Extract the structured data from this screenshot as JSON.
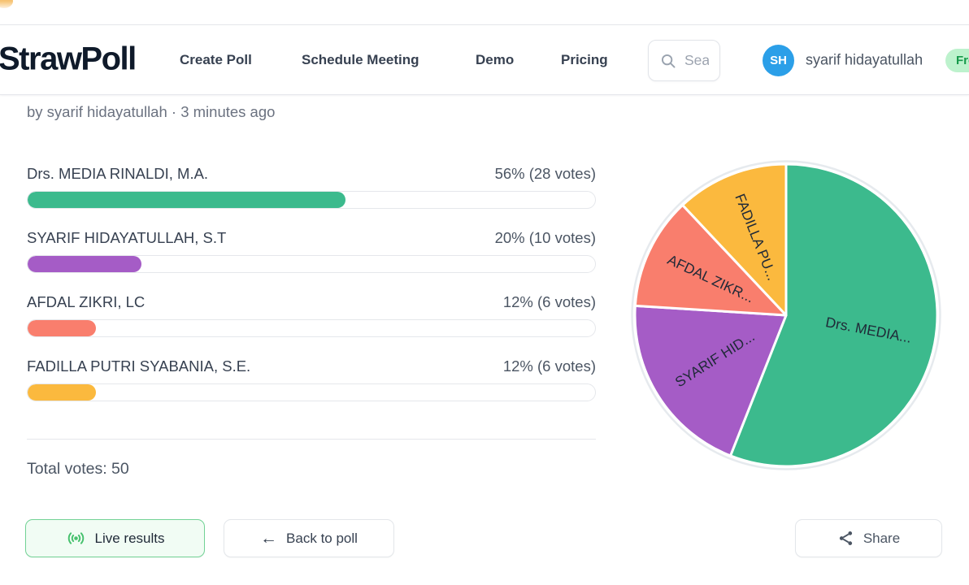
{
  "navbar": {
    "logo": "StrawPoll",
    "links": [
      {
        "label": "Create Poll"
      },
      {
        "label": "Schedule Meeting"
      },
      {
        "label": "Demo"
      },
      {
        "label": "Pricing"
      }
    ],
    "search": {
      "placeholder": "Search"
    },
    "user": {
      "initials": "SH",
      "name": "syarif hidayatullah",
      "plan_badge": "Free",
      "avatar_color": "#2b9fe8",
      "badge_bg": "#bdf2cd",
      "badge_text_color": "#179a4b"
    }
  },
  "poll": {
    "byline": "by syarif hidayatullah · 3 minutes ago",
    "options": [
      {
        "label": "Drs. MEDIA RINALDI, M.A.",
        "value_text": "56% (28 votes)",
        "percent": 56,
        "votes": 28,
        "color": "#3cba8d"
      },
      {
        "label": "SYARIF HIDAYATULLAH, S.T",
        "value_text": "20% (10 votes)",
        "percent": 20,
        "votes": 10,
        "color": "#a55cc6"
      },
      {
        "label": "AFDAL ZIKRI, LC",
        "value_text": "12% (6 votes)",
        "percent": 12,
        "votes": 6,
        "color": "#f97e6d"
      },
      {
        "label": "FADILLA PUTRI SYABANIA, S.E.",
        "value_text": "12% (6 votes)",
        "percent": 12,
        "votes": 6,
        "color": "#fbb93e"
      }
    ],
    "total_votes": 50,
    "total_votes_text": "Total votes: 50"
  },
  "actions": {
    "live_results": "Live results",
    "back_to_poll": "Back to poll",
    "share": "Share"
  },
  "chart_data": {
    "type": "pie",
    "labels": [
      "Drs. MEDIA...",
      "SYARIF HID...",
      "AFDAL ZIKR...",
      "FADILLA PU..."
    ],
    "full_labels": [
      "Drs. MEDIA RINALDI, M.A.",
      "SYARIF HIDAYATULLAH, S.T",
      "AFDAL ZIKRI, LC",
      "FADILLA PUTRI SYABANIA, S.E."
    ],
    "values": [
      56,
      20,
      12,
      12
    ],
    "colors": [
      "#3cba8d",
      "#a55cc6",
      "#f97e6d",
      "#fbb93e"
    ],
    "start_angle_deg": 0,
    "direction": "clockwise",
    "label_color": "#1f2937",
    "ring_color": "#e6eaee",
    "legend": "none",
    "title": ""
  }
}
